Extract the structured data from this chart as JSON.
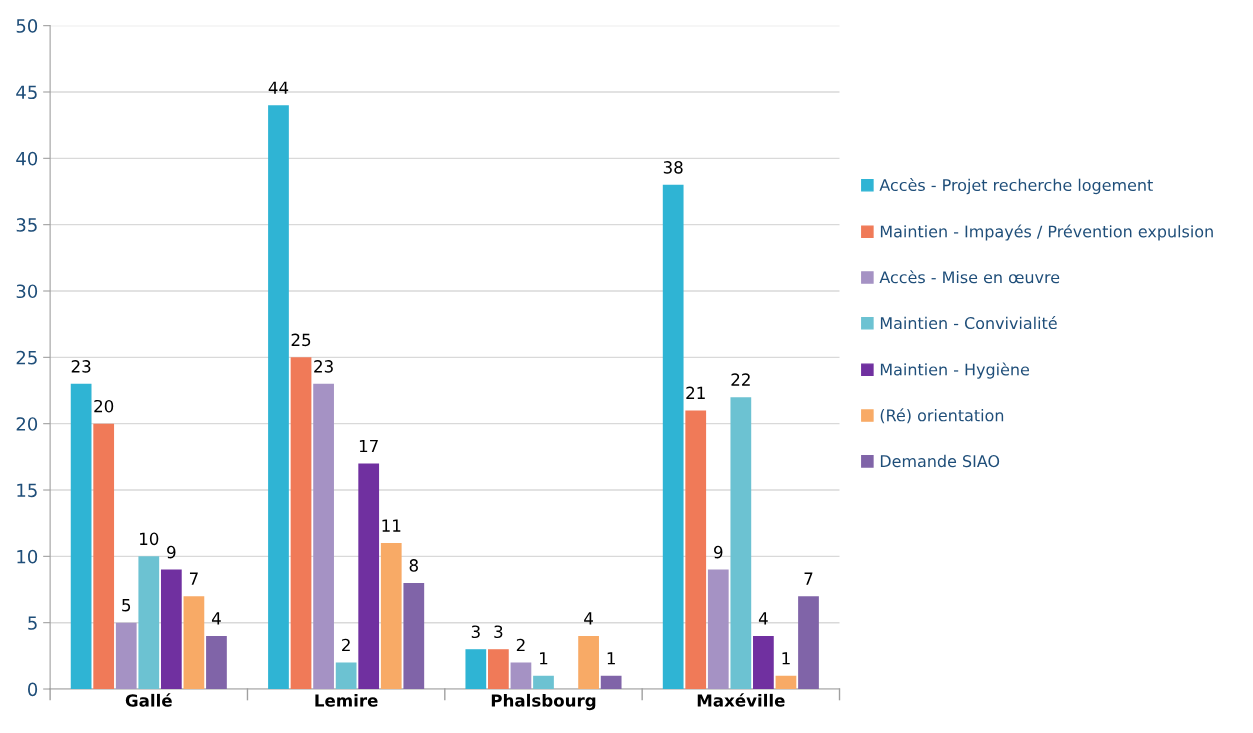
{
  "chart_data": {
    "type": "bar",
    "categories": [
      "Gallé",
      "Lemire",
      "Phalsbourg",
      "Maxéville"
    ],
    "series": [
      {
        "name": "Accès - Projet recherche logement",
        "color": "#2fb4d4",
        "values": [
          23,
          44,
          3,
          38
        ]
      },
      {
        "name": "Maintien - Impayés / Prévention expulsion",
        "color": "#f07a58",
        "values": [
          20,
          25,
          3,
          21
        ]
      },
      {
        "name": "Accès - Mise en œuvre",
        "color": "#a592c4",
        "values": [
          5,
          23,
          2,
          9
        ]
      },
      {
        "name": "Maintien - Convivialité",
        "color": "#6cc2d2",
        "values": [
          10,
          2,
          1,
          22
        ]
      },
      {
        "name": "Maintien - Hygiène",
        "color": "#7030a0",
        "values": [
          9,
          17,
          null,
          4
        ]
      },
      {
        "name": "(Ré) orientation",
        "color": "#f8aa66",
        "values": [
          7,
          11,
          4,
          1
        ]
      },
      {
        "name": "Demande SIAO",
        "color": "#8064a8",
        "values": [
          4,
          8,
          1,
          7
        ]
      }
    ],
    "ylim": [
      0,
      50
    ],
    "yticks": [
      0,
      5,
      10,
      15,
      20,
      25,
      30,
      35,
      40,
      45,
      50
    ],
    "grid": "y",
    "legend": "right",
    "data_labels": true
  }
}
